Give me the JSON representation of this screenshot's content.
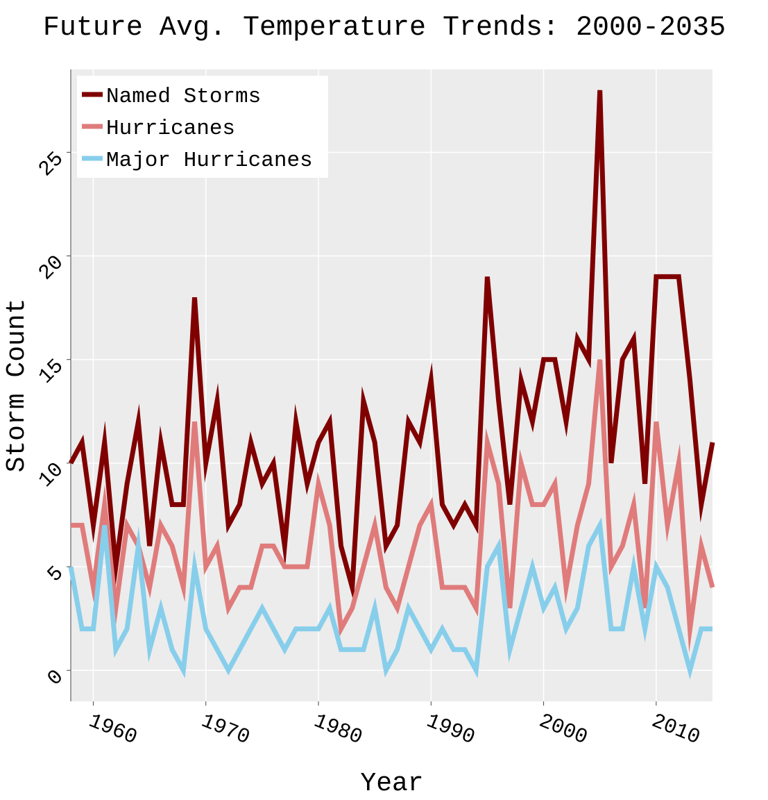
{
  "chart_data": {
    "type": "line",
    "title": "Future Avg. Temperature Trends: 2000-2035",
    "xlabel": "Year",
    "ylabel": "Storm Count",
    "xlim": [
      1958,
      2015
    ],
    "ylim": [
      -1.5,
      29
    ],
    "xticks": [
      1960,
      1970,
      1980,
      1990,
      2000,
      2010
    ],
    "yticks": [
      0,
      5,
      10,
      15,
      20,
      25
    ],
    "grid": true,
    "legend_position": "top-left",
    "x": [
      1958,
      1959,
      1960,
      1961,
      1962,
      1963,
      1964,
      1965,
      1966,
      1967,
      1968,
      1969,
      1970,
      1971,
      1972,
      1973,
      1974,
      1975,
      1976,
      1977,
      1978,
      1979,
      1980,
      1981,
      1982,
      1983,
      1984,
      1985,
      1986,
      1987,
      1988,
      1989,
      1990,
      1991,
      1992,
      1993,
      1994,
      1995,
      1996,
      1997,
      1998,
      1999,
      2000,
      2001,
      2002,
      2003,
      2004,
      2005,
      2006,
      2007,
      2008,
      2009,
      2010,
      2011,
      2012,
      2013,
      2014,
      2015
    ],
    "series": [
      {
        "name": "Named Storms",
        "color": "#800000",
        "values": [
          10,
          11,
          7,
          11,
          5,
          9,
          12,
          6,
          11,
          8,
          8,
          18,
          10,
          13,
          7,
          8,
          11,
          9,
          10,
          6,
          12,
          9,
          11,
          12,
          6,
          4,
          13,
          11,
          6,
          7,
          12,
          11,
          14,
          8,
          7,
          8,
          7,
          19,
          13,
          8,
          14,
          12,
          15,
          15,
          12,
          16,
          15,
          28,
          10,
          15,
          16,
          9,
          19,
          19,
          19,
          14,
          8,
          11
        ]
      },
      {
        "name": "Hurricanes",
        "color": "#e07b7b",
        "values": [
          7,
          7,
          4,
          8,
          3,
          7,
          6,
          4,
          7,
          6,
          4,
          12,
          5,
          6,
          3,
          4,
          4,
          6,
          6,
          5,
          5,
          5,
          9,
          7,
          2,
          3,
          5,
          7,
          4,
          3,
          5,
          7,
          8,
          4,
          4,
          4,
          3,
          11,
          9,
          3,
          10,
          8,
          8,
          9,
          4,
          7,
          9,
          15,
          5,
          6,
          8,
          3,
          12,
          7,
          10,
          2,
          6,
          4
        ]
      },
      {
        "name": "Major Hurricanes",
        "color": "#87ceeb",
        "values": [
          5,
          2,
          2,
          7,
          1,
          2,
          6,
          1,
          3,
          1,
          0,
          5,
          2,
          1,
          0,
          1,
          2,
          3,
          2,
          1,
          2,
          2,
          2,
          3,
          1,
          1,
          1,
          3,
          0,
          1,
          3,
          2,
          1,
          2,
          1,
          1,
          0,
          5,
          6,
          1,
          3,
          5,
          3,
          4,
          2,
          3,
          6,
          7,
          2,
          2,
          5,
          2,
          5,
          4,
          2,
          0,
          2,
          2
        ]
      }
    ]
  }
}
